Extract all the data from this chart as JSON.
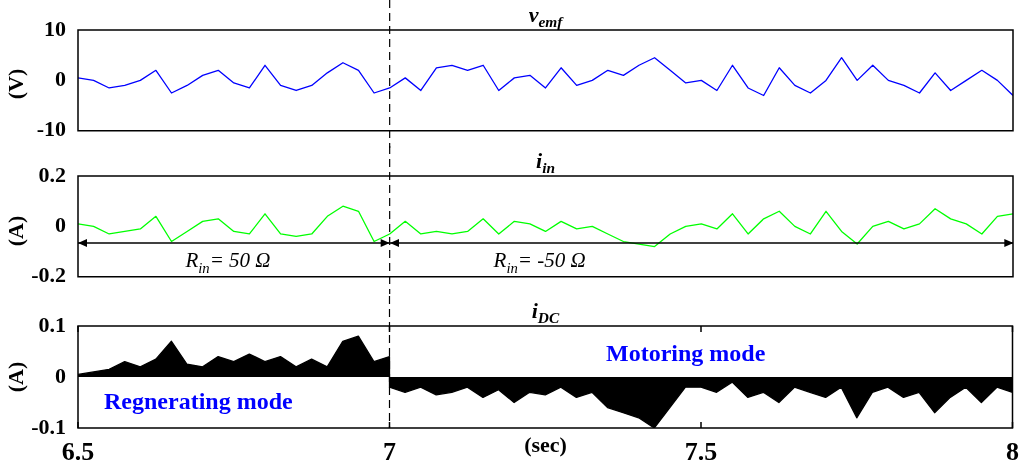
{
  "chart_data": [
    {
      "type": "line",
      "title": "v$_{emf}$",
      "ylabel": "(V)",
      "xlim": [
        6.5,
        8
      ],
      "ylim": [
        -10,
        10
      ],
      "yticks": [
        -10,
        0,
        10
      ],
      "tick_labels": "y",
      "x": [
        6.5,
        6.525,
        6.55,
        6.575,
        6.6,
        6.625,
        6.65,
        6.675,
        6.7,
        6.725,
        6.75,
        6.775,
        6.8,
        6.825,
        6.85,
        6.875,
        6.9,
        6.925,
        6.95,
        6.975,
        7.0,
        7.025,
        7.05,
        7.075,
        7.1,
        7.125,
        7.15,
        7.175,
        7.2,
        7.225,
        7.25,
        7.275,
        7.3,
        7.325,
        7.35,
        7.375,
        7.4,
        7.425,
        7.45,
        7.475,
        7.5,
        7.525,
        7.55,
        7.575,
        7.6,
        7.625,
        7.65,
        7.675,
        7.7,
        7.725,
        7.75,
        7.775,
        7.8,
        7.825,
        7.85,
        7.875,
        7.9,
        7.925,
        7.95,
        7.975,
        8.0
      ],
      "series": [
        {
          "color": "#0000ff",
          "values": [
            0.5,
            0,
            -1.5,
            -1,
            0,
            2,
            -2.5,
            -1,
            1,
            2,
            -0.5,
            -1.5,
            3,
            -1,
            -2,
            -1,
            1.5,
            3.5,
            2,
            -2.5,
            -1.5,
            0.5,
            -2,
            2.5,
            3,
            2,
            3,
            -2,
            0.5,
            1,
            -1.5,
            2.5,
            -1,
            0,
            2,
            1,
            3,
            4.5,
            2,
            -0.5,
            0,
            -2,
            3,
            -1.5,
            -3,
            2.5,
            -1,
            -2.5,
            0,
            4.5,
            0,
            3,
            0,
            -1,
            -2.5,
            1.5,
            -2,
            0,
            2,
            0,
            -3
          ]
        }
      ],
      "ref_lines": [
        {
          "axis": "x",
          "value": 7,
          "color": "#000000",
          "line_style": "dashed"
        }
      ]
    },
    {
      "type": "line",
      "title": "i$_{in}$",
      "ylabel": "(A)",
      "xlim": [
        6.5,
        8
      ],
      "ylim": [
        -0.2,
        0.2
      ],
      "yticks": [
        -0.2,
        0,
        0.2
      ],
      "tick_labels": "y",
      "x": [
        6.5,
        6.525,
        6.55,
        6.575,
        6.6,
        6.625,
        6.65,
        6.675,
        6.7,
        6.725,
        6.75,
        6.775,
        6.8,
        6.825,
        6.85,
        6.875,
        6.9,
        6.925,
        6.95,
        6.975,
        7.0,
        7.025,
        7.05,
        7.075,
        7.1,
        7.125,
        7.15,
        7.175,
        7.2,
        7.225,
        7.25,
        7.275,
        7.3,
        7.325,
        7.35,
        7.375,
        7.4,
        7.425,
        7.45,
        7.475,
        7.5,
        7.525,
        7.55,
        7.575,
        7.6,
        7.625,
        7.65,
        7.675,
        7.7,
        7.725,
        7.75,
        7.775,
        7.8,
        7.825,
        7.85,
        7.875,
        7.9,
        7.925,
        7.95,
        7.975,
        8.0
      ],
      "series": [
        {
          "color": "#00ff00",
          "values": [
            0.01,
            0,
            -0.03,
            -0.02,
            -0.01,
            0.04,
            -0.06,
            -0.02,
            0.02,
            0.03,
            -0.02,
            -0.03,
            0.05,
            -0.03,
            -0.04,
            -0.03,
            0.04,
            0.08,
            0.06,
            -0.06,
            -0.03,
            0.02,
            -0.03,
            -0.02,
            -0.03,
            -0.02,
            0.03,
            -0.03,
            0.02,
            0.01,
            -0.02,
            0.02,
            -0.01,
            0,
            -0.03,
            -0.06,
            -0.07,
            -0.08,
            -0.03,
            0,
            0.01,
            -0.01,
            0.05,
            -0.03,
            0.03,
            0.06,
            0,
            -0.03,
            0.06,
            -0.02,
            -0.07,
            0,
            0.02,
            -0.01,
            0.01,
            0.07,
            0.03,
            0.01,
            -0.03,
            0.04,
            0.05
          ]
        }
      ],
      "ref_lines": [
        {
          "axis": "x",
          "value": 7,
          "color": "#000000",
          "line_style": "dashed"
        }
      ],
      "annotations": [
        "R$_{in}$= 50 Ω",
        "R$_{in}$= -50 Ω"
      ]
    },
    {
      "type": "area",
      "title": "i$_{DC}$",
      "ylabel": "(A)",
      "xlabel": "(sec)",
      "xlim": [
        6.5,
        8
      ],
      "ylim": [
        -0.1,
        0.1
      ],
      "xticks": [
        6.5,
        7,
        7.5,
        8
      ],
      "yticks": [
        -0.1,
        0,
        0.1
      ],
      "x": [
        6.5,
        6.525,
        6.55,
        6.575,
        6.6,
        6.625,
        6.65,
        6.675,
        6.7,
        6.725,
        6.75,
        6.775,
        6.8,
        6.825,
        6.85,
        6.875,
        6.9,
        6.925,
        6.95,
        6.975,
        7.0,
        7.0,
        7.025,
        7.05,
        7.075,
        7.1,
        7.125,
        7.15,
        7.175,
        7.2,
        7.225,
        7.25,
        7.275,
        7.3,
        7.325,
        7.35,
        7.375,
        7.4,
        7.425,
        7.45,
        7.475,
        7.5,
        7.525,
        7.55,
        7.575,
        7.6,
        7.625,
        7.65,
        7.675,
        7.7,
        7.725,
        7.75,
        7.775,
        7.8,
        7.825,
        7.85,
        7.875,
        7.9,
        7.925,
        7.95,
        7.975,
        8.0
      ],
      "series": [
        {
          "color": "#000000",
          "values": [
            0.005,
            0.01,
            0.015,
            0.03,
            0.02,
            0.035,
            0.07,
            0.025,
            0.02,
            0.04,
            0.03,
            0.045,
            0.03,
            0.04,
            0.02,
            0.035,
            0.02,
            0.07,
            0.08,
            0.03,
            0.04,
            -0.02,
            -0.03,
            -0.02,
            -0.035,
            -0.03,
            -0.02,
            -0.04,
            -0.025,
            -0.05,
            -0.03,
            -0.035,
            -0.02,
            -0.04,
            -0.03,
            -0.06,
            -0.07,
            -0.08,
            -0.1,
            -0.06,
            -0.02,
            -0.02,
            -0.03,
            -0.01,
            -0.04,
            -0.03,
            -0.05,
            -0.02,
            -0.03,
            -0.04,
            -0.02,
            -0.08,
            -0.03,
            -0.02,
            -0.04,
            -0.03,
            -0.07,
            -0.04,
            -0.02,
            -0.05,
            -0.02,
            -0.03
          ]
        }
      ],
      "ref_lines": [
        {
          "axis": "x",
          "value": 7,
          "color": "#000000",
          "line_style": "dashed"
        }
      ],
      "annotations": [
        "Motoring mode",
        "Regnerating mode"
      ]
    }
  ]
}
